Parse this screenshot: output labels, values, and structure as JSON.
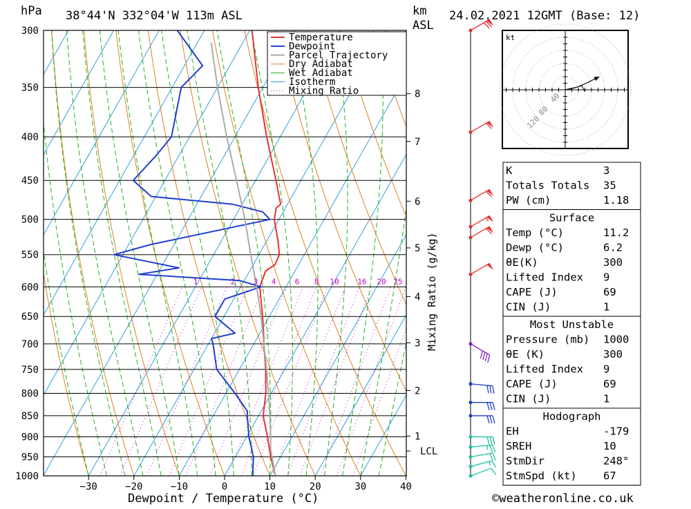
{
  "header": {
    "location": "38°44'N  332°04'W  113m  ASL",
    "date": "24.02.2021  12GMT  (Base: 12)",
    "p_unit": "hPa",
    "km_unit": "km",
    "asl_unit": "ASL"
  },
  "footer": {
    "credit": "©weatheronline.co.uk"
  },
  "chart_data": {
    "type": "line",
    "title": "38°44'N 332°04'W 113m ASL",
    "xlabel": "Dewpoint / Temperature (°C)",
    "ylabel": "hPa",
    "ylabel_right": "Mixing Ratio (g/kg)",
    "xlim": [
      -40,
      40
    ],
    "ylim": [
      1000,
      300
    ],
    "x_ticks": [
      -30,
      -20,
      -10,
      0,
      10,
      20,
      30,
      40
    ],
    "pressure_levels": [
      300,
      350,
      400,
      450,
      500,
      550,
      600,
      650,
      700,
      750,
      800,
      850,
      900,
      950,
      1000
    ],
    "height_labels": [
      {
        "p": 356,
        "label": "8"
      },
      {
        "p": 405,
        "label": "7"
      },
      {
        "p": 476,
        "label": "6"
      },
      {
        "p": 540,
        "label": "5"
      },
      {
        "p": 616,
        "label": "4"
      },
      {
        "p": 698,
        "label": "3"
      },
      {
        "p": 794,
        "label": "2"
      },
      {
        "p": 898,
        "label": "1"
      },
      {
        "p": 935,
        "label": "LCL"
      }
    ],
    "mixing_ratio_labels": [
      "1",
      "2",
      "3",
      "4",
      "6",
      "8",
      "10",
      "16",
      "20",
      "25"
    ],
    "legend": [
      "Temperature",
      "Dewpoint",
      "Parcel Trajectory",
      "Dry Adiabat",
      "Wet Adiabat",
      "Isotherm",
      "Mixing Ratio"
    ],
    "colors": {
      "temperature": "#e83030",
      "dewpoint": "#1f3fd0",
      "parcel": "#aaaaaa",
      "dry_adiabat": "#e08020",
      "wet_adiabat": "#20b020",
      "isotherm": "#30a0e0",
      "mixing_ratio": "#c000c0"
    },
    "series": [
      {
        "name": "Temperature",
        "points": [
          [
            1000,
            11.2
          ],
          [
            950,
            7.8
          ],
          [
            900,
            4.6
          ],
          [
            850,
            1.0
          ],
          [
            800,
            -1.2
          ],
          [
            750,
            -4.2
          ],
          [
            700,
            -7.8
          ],
          [
            680,
            -9.2
          ],
          [
            650,
            -11.5
          ],
          [
            600,
            -15.8
          ],
          [
            575,
            -16.5
          ],
          [
            565,
            -15.2
          ],
          [
            550,
            -15.5
          ],
          [
            530,
            -17.5
          ],
          [
            500,
            -21.0
          ],
          [
            485,
            -22.0
          ],
          [
            480,
            -21.5
          ],
          [
            450,
            -25.5
          ],
          [
            400,
            -33.0
          ],
          [
            350,
            -41.0
          ],
          [
            300,
            -49.5
          ]
        ]
      },
      {
        "name": "Dewpoint",
        "points": [
          [
            1000,
            6.2
          ],
          [
            950,
            4.0
          ],
          [
            900,
            0.5
          ],
          [
            850,
            -2.5
          ],
          [
            840,
            -3.0
          ],
          [
            800,
            -8.0
          ],
          [
            750,
            -15.0
          ],
          [
            700,
            -19.0
          ],
          [
            690,
            -20.0
          ],
          [
            680,
            -15.5
          ],
          [
            650,
            -22.0
          ],
          [
            620,
            -22.0
          ],
          [
            600,
            -15.5
          ],
          [
            590,
            -21.0
          ],
          [
            580,
            -44.0
          ],
          [
            570,
            -36.0
          ],
          [
            550,
            -52.0
          ],
          [
            535,
            -45.0
          ],
          [
            500,
            -22.0
          ],
          [
            490,
            -24.5
          ],
          [
            480,
            -32.0
          ],
          [
            470,
            -51.0
          ],
          [
            450,
            -57.0
          ],
          [
            420,
            -55.0
          ],
          [
            400,
            -54.0
          ],
          [
            350,
            -58.0
          ],
          [
            330,
            -56.0
          ],
          [
            300,
            -66.0
          ]
        ]
      },
      {
        "name": "Parcel Trajectory",
        "points": [
          [
            1000,
            11.2
          ],
          [
            930,
            6.8
          ],
          [
            900,
            5.3
          ],
          [
            850,
            2.5
          ],
          [
            800,
            -0.6
          ],
          [
            750,
            -4.0
          ],
          [
            700,
            -7.8
          ],
          [
            650,
            -11.8
          ],
          [
            600,
            -16.5
          ],
          [
            550,
            -21.8
          ],
          [
            500,
            -27.5
          ],
          [
            450,
            -34.2
          ],
          [
            400,
            -41.8
          ],
          [
            350,
            -50.0
          ],
          [
            310,
            -57.0
          ]
        ]
      }
    ],
    "wind_barbs": [
      {
        "p": 1000,
        "dir": 250,
        "speed": 10
      },
      {
        "p": 975,
        "dir": 255,
        "speed": 15
      },
      {
        "p": 950,
        "dir": 260,
        "speed": 20
      },
      {
        "p": 925,
        "dir": 265,
        "speed": 25
      },
      {
        "p": 900,
        "dir": 270,
        "speed": 30
      },
      {
        "p": 850,
        "dir": 270,
        "speed": 30
      },
      {
        "p": 820,
        "dir": 270,
        "speed": 30
      },
      {
        "p": 780,
        "dir": 275,
        "speed": 30
      },
      {
        "p": 700,
        "dir": 300,
        "speed": 40
      },
      {
        "p": 580,
        "dir": 240,
        "speed": 50
      },
      {
        "p": 525,
        "dir": 240,
        "speed": 60
      },
      {
        "p": 510,
        "dir": 240,
        "speed": 55
      },
      {
        "p": 475,
        "dir": 240,
        "speed": 60
      },
      {
        "p": 395,
        "dir": 240,
        "speed": 60
      },
      {
        "p": 300,
        "dir": 240,
        "speed": 70
      }
    ],
    "hodograph": {
      "unit": "kt",
      "ring_labels": [
        "40",
        "80",
        "120"
      ],
      "points": [
        [
          0,
          0
        ],
        [
          18,
          4
        ],
        [
          32,
          10
        ],
        [
          52,
          20
        ]
      ]
    }
  },
  "indices": {
    "block1": [
      {
        "label": "K",
        "value": "3"
      },
      {
        "label": "Totals Totals",
        "value": "35"
      },
      {
        "label": "PW (cm)",
        "value": "1.18"
      }
    ],
    "surface": {
      "title": "Surface",
      "rows": [
        {
          "label": "Temp (°C)",
          "value": "11.2"
        },
        {
          "label": "Dewp (°C)",
          "value": "6.2"
        },
        {
          "label": "θE(K)",
          "value": "300"
        },
        {
          "label": "Lifted Index",
          "value": "9"
        },
        {
          "label": "CAPE (J)",
          "value": "69"
        },
        {
          "label": "CIN (J)",
          "value": "1"
        }
      ]
    },
    "most_unstable": {
      "title": "Most Unstable",
      "rows": [
        {
          "label": "Pressure (mb)",
          "value": "1000"
        },
        {
          "label": "θE (K)",
          "value": "300"
        },
        {
          "label": "Lifted Index",
          "value": "9"
        },
        {
          "label": "CAPE (J)",
          "value": "69"
        },
        {
          "label": "CIN (J)",
          "value": "1"
        }
      ]
    },
    "hodograph": {
      "title": "Hodograph",
      "rows": [
        {
          "label": "EH",
          "value": "-179"
        },
        {
          "label": "SREH",
          "value": "10"
        },
        {
          "label": "StmDir",
          "value": "248°"
        },
        {
          "label": "StmSpd (kt)",
          "value": "67"
        }
      ]
    }
  }
}
